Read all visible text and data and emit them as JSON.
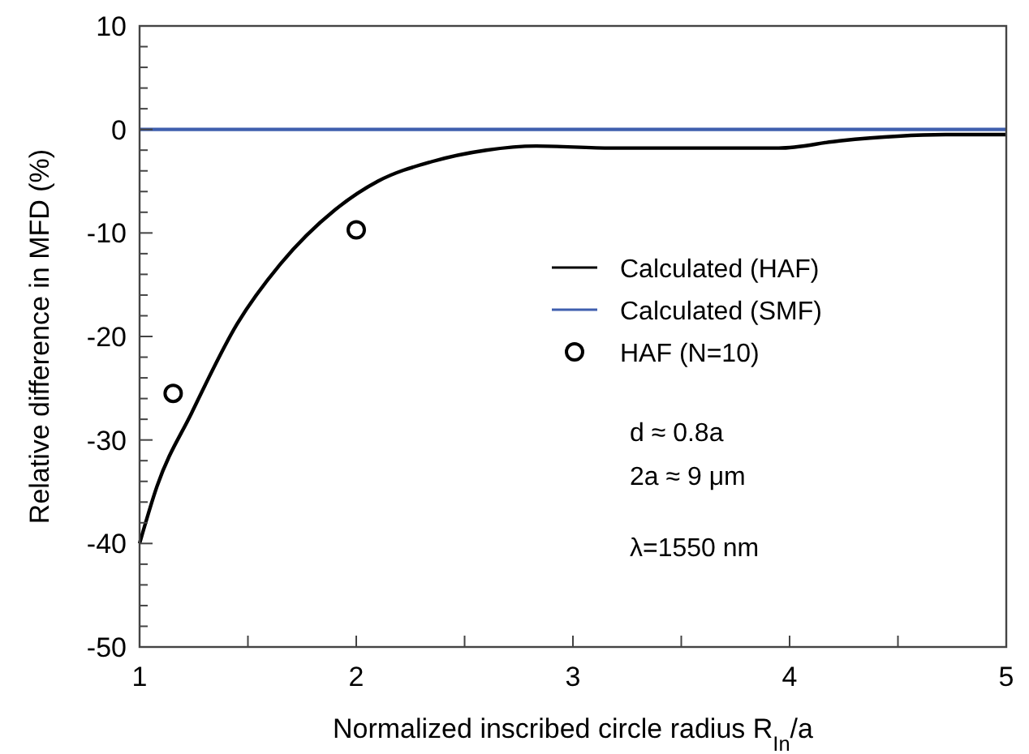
{
  "chart_data": {
    "type": "line",
    "xlabel": "Normalized inscribed circle radius R$_{In}$/a",
    "ylabel": "Relative difference in MFD (%)",
    "xlim": [
      1,
      5
    ],
    "xticks": [
      1,
      2,
      3,
      4,
      5
    ],
    "ylim": [
      -50,
      10
    ],
    "yticks": [
      -50,
      -40,
      -30,
      -20,
      -10,
      0,
      10
    ],
    "grid": false,
    "legend": "right",
    "line_style": "solid",
    "series": [
      {
        "name": "Calculated (HAF)",
        "color": "#000000",
        "x": [
          1,
          1.08,
          1.24,
          1.45,
          1.65,
          1.9,
          2.1,
          2.35,
          2.6,
          2.83,
          3.18,
          3.95,
          4.23,
          4.72,
          5
        ],
        "values": [
          -40,
          -34.5,
          -27.4,
          -18.8,
          -13,
          -7.8,
          -5,
          -3.1,
          -2,
          -1.6,
          -1.8,
          -1.8,
          -1.1,
          -0.5,
          -0.5
        ]
      },
      {
        "name": "Calculated (SMF)",
        "color": "#3f5fae",
        "x": [
          1,
          5
        ],
        "values": [
          0,
          0
        ]
      },
      {
        "name": "HAF (N=10)",
        "color": "#000000",
        "type": "scatter",
        "marker": "circle",
        "x": [
          1.155,
          2
        ],
        "values": [
          -25.5,
          -9.7
        ]
      }
    ],
    "annotations": [
      "d ≈ 0.8a",
      "2a ≈ 9 μm",
      "λ=1550 nm"
    ]
  }
}
